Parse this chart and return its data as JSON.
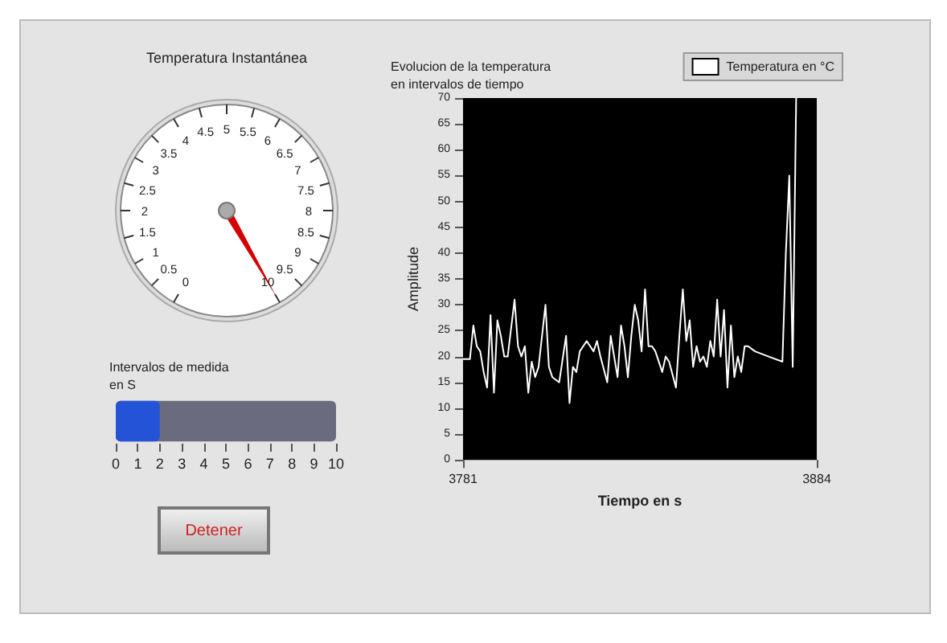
{
  "chart_data": [
    {
      "type": "other",
      "title": "Temperatura Instantánea",
      "annotations": [
        "0",
        "0.5",
        "1",
        "1.5",
        "2",
        "2.5",
        "3",
        "3.5",
        "4",
        "4.5",
        "5",
        "5.5",
        "6",
        "6.5",
        "7",
        "7.5",
        "8",
        "8.5",
        "9",
        "9.5",
        "10"
      ]
    },
    {
      "type": "bar",
      "orientation": "horizontal",
      "title": "Intervalos de medida\nen S",
      "categories": [
        null
      ],
      "values": [
        2
      ],
      "color": "#2453d8",
      "xlim": [
        0,
        10
      ],
      "xticks": [
        0,
        1,
        2,
        3,
        4,
        5,
        6,
        7,
        8,
        9,
        10
      ]
    },
    {
      "type": "line",
      "title": "Evolucion de la temperatura\nen intervalos de tiempo",
      "xlabel": "Tiempo en s",
      "ylabel": "Amplitude",
      "xlim": [
        3781,
        3884
      ],
      "xticks": [
        3781,
        3884
      ],
      "ylim": [
        0,
        70
      ],
      "yticks": [
        0,
        5,
        10,
        15,
        20,
        25,
        30,
        35,
        40,
        45,
        50,
        55,
        60,
        65,
        70
      ],
      "legend": "top right",
      "marker": "none",
      "series": [
        {
          "name": "Temperatura en °C",
          "color": "#ffffff",
          "x": [
            3781,
            3783,
            3784,
            3785,
            3786,
            3787,
            3788,
            3789,
            3790,
            3791,
            3792,
            3793,
            3794,
            3796,
            3797,
            3798,
            3799,
            3800,
            3801,
            3802,
            3803,
            3805,
            3806,
            3807,
            3809,
            3811,
            3812,
            3813,
            3814,
            3815,
            3817,
            3819,
            3820,
            3821,
            3823,
            3824,
            3826,
            3827,
            3828,
            3829,
            3830,
            3831,
            3832,
            3833,
            3834,
            3835,
            3836,
            3837,
            3839,
            3840,
            3841,
            3843,
            3844,
            3845,
            3846,
            3847,
            3848,
            3849,
            3850,
            3851,
            3852,
            3853,
            3854,
            3855,
            3856,
            3857,
            3858,
            3859,
            3860,
            3861,
            3862,
            3863,
            3864,
            3866,
            3870,
            3874,
            3875,
            3876,
            3877,
            3878
          ],
          "values": [
            19.5,
            19.5,
            26,
            22,
            21,
            17,
            14,
            28,
            13,
            27,
            24,
            20,
            20,
            31,
            22,
            20,
            22,
            13,
            19,
            16,
            18,
            30,
            18,
            16,
            15,
            24,
            11,
            18,
            17,
            21,
            23,
            21,
            23,
            20,
            15,
            24,
            16,
            26,
            22,
            16,
            24,
            30,
            27,
            21,
            33,
            22,
            22,
            21,
            17,
            20,
            19,
            14,
            24,
            33,
            23,
            27,
            18,
            22,
            19,
            20,
            18,
            23,
            20,
            31,
            20,
            29,
            14,
            26,
            16,
            20,
            17,
            22,
            22,
            21,
            20,
            19,
            40,
            55,
            18,
            70
          ]
        }
      ]
    },
    {
      "type": "other",
      "annotations": [
        "Detener"
      ]
    }
  ]
}
